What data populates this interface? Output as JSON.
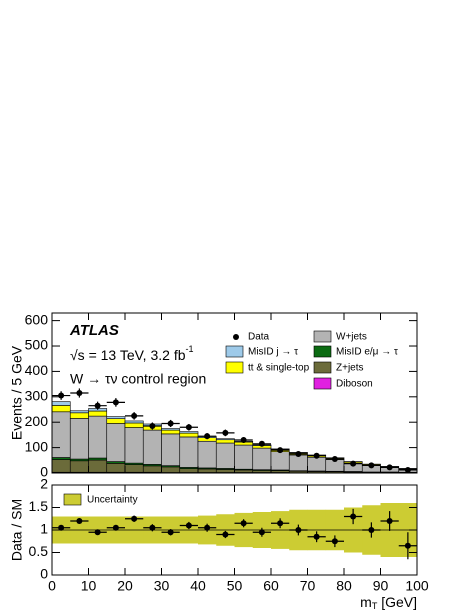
{
  "chart_data": [
    {
      "type": "histogram",
      "annotation_experiment": "ATLAS",
      "annotation_energy": "√s = 13 TeV, 3.2 fb",
      "annotation_energy_exponent": "-1",
      "annotation_region": "W → τν control region",
      "ylabel": "Events / 5 GeV",
      "bins": [
        0,
        5,
        10,
        15,
        20,
        25,
        30,
        35,
        40,
        45,
        50,
        55,
        60,
        65,
        70,
        75,
        80,
        85,
        90,
        95,
        100
      ],
      "xlim": [
        0,
        100
      ],
      "xticks": [
        0,
        10,
        20,
        30,
        40,
        50,
        60,
        70,
        80,
        90,
        100
      ],
      "ylim": [
        0,
        630
      ],
      "yticks": [
        0,
        100,
        200,
        300,
        400,
        500,
        600
      ],
      "series": [
        {
          "name": "Diboson",
          "color": "#e020e0",
          "values": [
            3,
            3,
            3,
            3,
            3,
            3,
            2,
            2,
            2,
            2,
            2,
            2,
            2,
            1,
            1,
            1,
            1,
            1,
            1,
            1
          ]
        },
        {
          "name": "Z+jets",
          "color": "#6b6b3a",
          "values": [
            50,
            45,
            48,
            35,
            30,
            25,
            22,
            15,
            14,
            12,
            10,
            8,
            7,
            6,
            5,
            4,
            3,
            2,
            2,
            1
          ]
        },
        {
          "name": "MisID e/μ → τ",
          "color": "#0b6b12",
          "values": [
            8,
            7,
            8,
            7,
            6,
            6,
            5,
            5,
            4,
            4,
            3,
            3,
            3,
            2,
            2,
            2,
            2,
            1,
            1,
            1
          ]
        },
        {
          "name": "W+jets",
          "color": "#b3b3b3",
          "values": [
            180,
            160,
            165,
            150,
            140,
            135,
            125,
            120,
            105,
            100,
            95,
            85,
            72,
            62,
            54,
            46,
            33,
            26,
            18,
            12
          ]
        },
        {
          "name": "tt & single-top",
          "color": "#ffff00",
          "values": [
            25,
            22,
            20,
            19,
            18,
            17,
            15,
            15,
            14,
            13,
            12,
            10,
            9,
            8,
            7,
            6,
            5,
            4,
            3,
            2
          ]
        },
        {
          "name": "MisID j → τ",
          "color": "#9ecae9",
          "values": [
            15,
            8,
            10,
            8,
            8,
            7,
            6,
            6,
            5,
            4,
            3,
            3,
            2,
            2,
            2,
            1,
            1,
            1,
            1,
            1
          ]
        }
      ],
      "data": {
        "name": "Data",
        "color": "#000000",
        "values": [
          305,
          315,
          265,
          278,
          225,
          185,
          195,
          180,
          145,
          158,
          130,
          115,
          90,
          75,
          68,
          55,
          37,
          30,
          22,
          12
        ],
        "errors": [
          17,
          18,
          16,
          17,
          15,
          14,
          14,
          13,
          12,
          13,
          11,
          11,
          10,
          9,
          8,
          7,
          6,
          5,
          5,
          4
        ]
      }
    },
    {
      "type": "ratio",
      "ylabel": "Data / SM",
      "xlabel": "m",
      "xlabel_subscript": "T",
      "xlabel_unit": " [GeV]",
      "xlim": [
        0,
        100
      ],
      "xticks": [
        0,
        10,
        20,
        30,
        40,
        50,
        60,
        70,
        80,
        90,
        100
      ],
      "ylim": [
        0,
        2
      ],
      "yticks": [
        0,
        0.5,
        1,
        1.5,
        2
      ],
      "reference": 1,
      "band": {
        "name": "Uncertainty",
        "color": "#cccc33",
        "values": [
          0.3,
          0.3,
          0.3,
          0.3,
          0.3,
          0.3,
          0.3,
          0.3,
          0.32,
          0.35,
          0.38,
          0.4,
          0.42,
          0.45,
          0.45,
          0.45,
          0.5,
          0.55,
          0.6,
          0.6
        ]
      },
      "values": [
        1.05,
        1.2,
        0.95,
        1.05,
        1.25,
        1.05,
        0.95,
        1.1,
        1.05,
        0.9,
        1.15,
        0.95,
        1.15,
        1.0,
        0.85,
        0.75,
        1.3,
        1.0,
        1.2,
        0.65
      ],
      "errors": [
        0.06,
        0.06,
        0.06,
        0.06,
        0.07,
        0.08,
        0.07,
        0.08,
        0.09,
        0.08,
        0.09,
        0.1,
        0.11,
        0.12,
        0.12,
        0.13,
        0.17,
        0.17,
        0.22,
        0.3
      ]
    }
  ]
}
